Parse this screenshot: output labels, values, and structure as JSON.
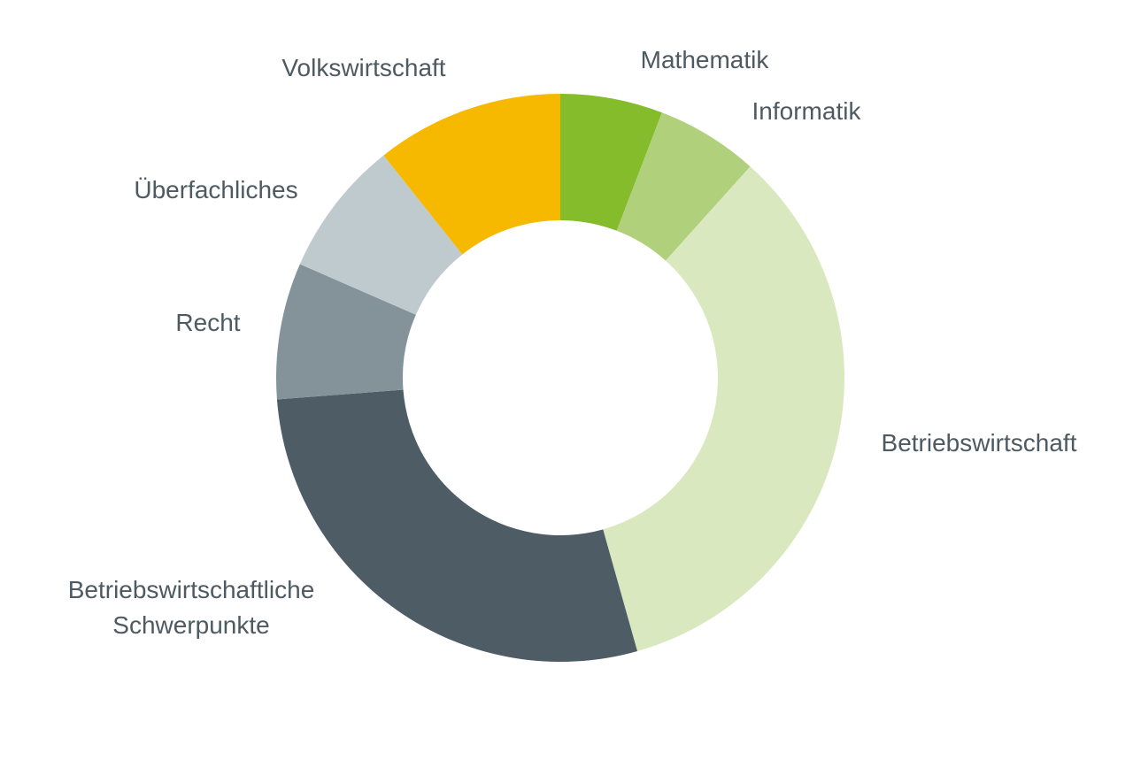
{
  "chart_data": {
    "type": "pie",
    "donut": true,
    "title": "",
    "unit": "%",
    "start_angle_deg": 0,
    "direction": "clockwise",
    "slices": [
      {
        "label": "Mathematik",
        "value": 6,
        "color": "#84bc2c"
      },
      {
        "label": "Informatik",
        "value": 6,
        "color": "#b1d07b"
      },
      {
        "label": "Betriebswirtschaft",
        "value": 35,
        "color": "#d9e8bf"
      },
      {
        "label": "Betriebswirtschaftliche Schwerpunkte",
        "value": 29,
        "color": "#4e5c66"
      },
      {
        "label": "Recht",
        "value": 8,
        "color": "#84939a"
      },
      {
        "label": "Überfachliches",
        "value": 8,
        "color": "#bfcace"
      },
      {
        "label": "Volkswirtschaft",
        "value": 11,
        "color": "#f7b800"
      }
    ]
  }
}
